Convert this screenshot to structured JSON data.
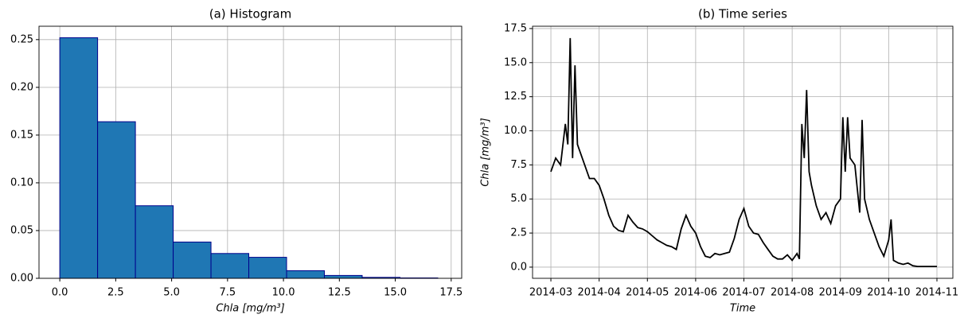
{
  "chart_data": [
    {
      "type": "histogram",
      "title": "(a) Histogram",
      "xlabel": "Chla [mg/m³]",
      "bins": [
        0,
        1.69,
        3.38,
        5.07,
        6.76,
        8.45,
        10.14,
        11.83,
        13.52,
        15.21,
        16.9
      ],
      "values": [
        0.252,
        0.164,
        0.076,
        0.038,
        0.026,
        0.022,
        0.008,
        0.003,
        0.001,
        0.0004
      ],
      "color": "#1f77b4",
      "edgecolor": "#00008b",
      "xlim": [
        -0.93,
        17.97
      ],
      "ylim": [
        0,
        0.264
      ],
      "xticks": [
        {
          "value": 0,
          "label": "0.0"
        },
        2.5,
        {
          "value": 5,
          "label": "5.0"
        },
        7.5,
        {
          "value": 10,
          "label": "10.0"
        },
        12.5,
        {
          "value": 15,
          "label": "15.0"
        },
        17.5
      ],
      "yticks": [
        {
          "value": 0,
          "label": "0.00"
        },
        0.05,
        {
          "value": 0.1,
          "label": "0.10"
        },
        0.15,
        {
          "value": 0.2,
          "label": "0.20"
        },
        0.25
      ],
      "grid": true
    },
    {
      "type": "line",
      "title": "(b) Time series",
      "xlabel": "Time",
      "ylabel": "Chla [mg/m³]",
      "x": [
        0,
        0.1,
        0.2,
        0.3,
        0.35,
        0.4,
        0.45,
        0.5,
        0.55,
        0.6,
        0.7,
        0.8,
        0.9,
        1.0,
        1.1,
        1.2,
        1.3,
        1.4,
        1.5,
        1.6,
        1.7,
        1.8,
        1.9,
        2.0,
        2.1,
        2.2,
        2.3,
        2.4,
        2.5,
        2.6,
        2.7,
        2.8,
        2.9,
        3.0,
        3.1,
        3.2,
        3.3,
        3.4,
        3.5,
        3.6,
        3.7,
        3.8,
        3.9,
        4.0,
        4.1,
        4.2,
        4.3,
        4.4,
        4.5,
        4.6,
        4.7,
        4.8,
        4.9,
        5.0,
        5.1,
        5.15,
        5.2,
        5.25,
        5.3,
        5.35,
        5.4,
        5.5,
        5.6,
        5.7,
        5.8,
        5.9,
        6.0,
        6.05,
        6.1,
        6.15,
        6.2,
        6.3,
        6.4,
        6.45,
        6.5,
        6.6,
        6.7,
        6.8,
        6.9,
        7.0,
        7.05,
        7.1,
        7.2,
        7.3,
        7.4,
        7.5,
        7.6,
        7.7,
        7.8,
        7.9,
        8.0
      ],
      "values": [
        7.0,
        8.0,
        7.5,
        10.5,
        9,
        16.8,
        8,
        14.8,
        9,
        8.5,
        7.5,
        6.5,
        6.5,
        6.0,
        5.0,
        3.8,
        3.0,
        2.7,
        2.6,
        3.8,
        3.3,
        2.9,
        2.8,
        2.6,
        2.3,
        2.0,
        1.8,
        1.6,
        1.5,
        1.3,
        2.8,
        3.8,
        3.0,
        2.5,
        1.5,
        0.8,
        0.7,
        1.0,
        0.9,
        1.0,
        1.1,
        2.1,
        3.5,
        4.3,
        3.0,
        2.5,
        2.4,
        1.8,
        1.3,
        0.8,
        0.6,
        0.6,
        0.9,
        0.5,
        1.0,
        0.6,
        10.5,
        8,
        13,
        7,
        6,
        4.5,
        3.5,
        4.0,
        3.2,
        4.5,
        5.0,
        11,
        7,
        11,
        8,
        7.5,
        4.0,
        10.8,
        5.0,
        3.5,
        2.5,
        1.5,
        0.8,
        2.0,
        3.5,
        0.5,
        0.3,
        0.2,
        0.3,
        0.1,
        0.05,
        0.05,
        0.05,
        0.05,
        0.05
      ],
      "color": "#000000",
      "xlim": [
        -0.38,
        8.33
      ],
      "ylim": [
        -0.82,
        17.67
      ],
      "xticks": [
        {
          "value": 0,
          "label": "2014-03"
        },
        {
          "value": 1,
          "label": "2014-04"
        },
        {
          "value": 2,
          "label": "2014-05"
        },
        {
          "value": 3,
          "label": "2014-06"
        },
        {
          "value": 4,
          "label": "2014-07"
        },
        {
          "value": 5,
          "label": "2014-08"
        },
        {
          "value": 6,
          "label": "2014-09"
        },
        {
          "value": 7,
          "label": "2014-10"
        },
        {
          "value": 8,
          "label": "2014-11"
        }
      ],
      "yticks": [
        {
          "value": 0,
          "label": "0.0"
        },
        2.5,
        {
          "value": 5,
          "label": "5.0"
        },
        7.5,
        {
          "value": 10,
          "label": "10.0"
        },
        12.5,
        {
          "value": 15,
          "label": "15.0"
        },
        17.5
      ],
      "grid": true
    }
  ]
}
